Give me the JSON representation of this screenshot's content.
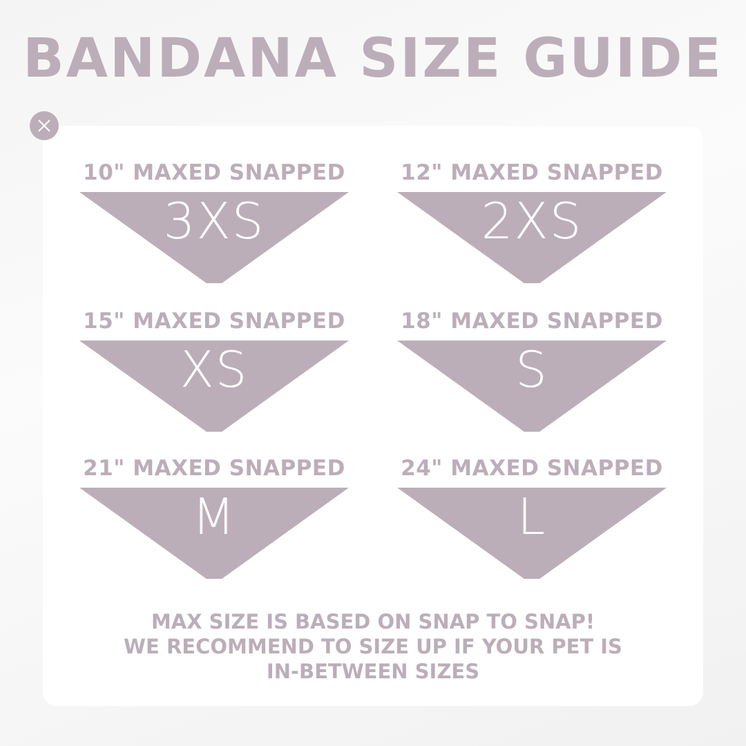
{
  "title": "BANDANA SIZE GUIDE",
  "accent_color": "#bcaeb9",
  "close_icon": "close-icon",
  "sizes": [
    {
      "label": "10\" MAXED SNAPPED",
      "size": "3XS"
    },
    {
      "label": "12\" MAXED SNAPPED",
      "size": "2XS"
    },
    {
      "label": "15\" MAXED SNAPPED",
      "size": "XS"
    },
    {
      "label": "18\" MAXED SNAPPED",
      "size": "S"
    },
    {
      "label": "21\" MAXED SNAPPED",
      "size": "M"
    },
    {
      "label": "24\" MAXED SNAPPED",
      "size": "L"
    }
  ],
  "footer": {
    "line1": "MAX SIZE IS BASED ON SNAP TO SNAP!",
    "line2": "WE RECOMMEND TO SIZE UP IF YOUR PET IS",
    "line3": "IN-BETWEEN SIZES"
  }
}
